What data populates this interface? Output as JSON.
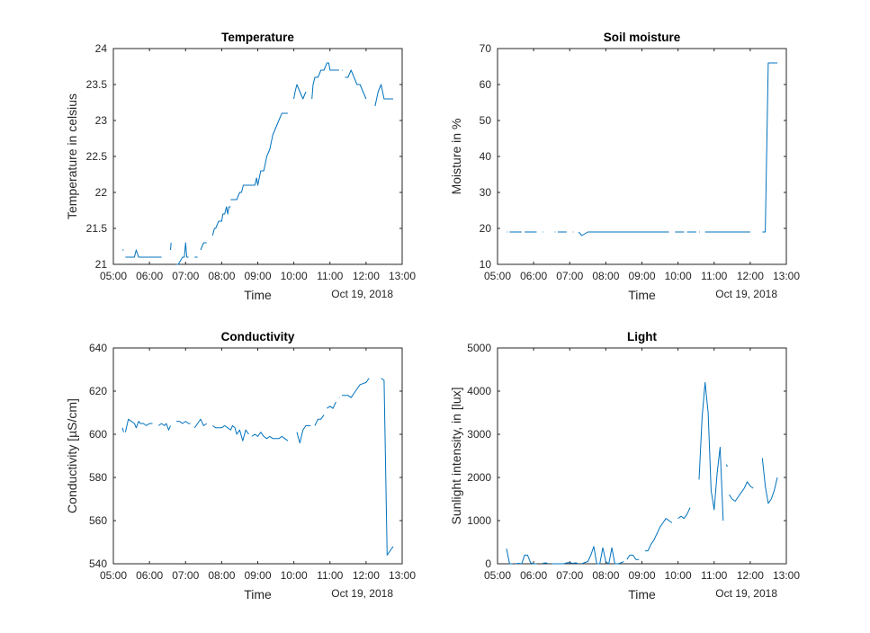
{
  "colors": {
    "line": "#0072bd",
    "axis": "#262626",
    "background": "#ffffff"
  },
  "chart_data": [
    {
      "type": "line",
      "title": "Temperature",
      "xlabel": "Time",
      "ylabel": "Temperature in celsius",
      "date_label": "Oct 19, 2018",
      "xlim": [
        "05:00",
        "13:00"
      ],
      "ylim": [
        21,
        24
      ],
      "xticks": [
        "05:00",
        "06:00",
        "07:00",
        "08:00",
        "09:00",
        "10:00",
        "11:00",
        "12:00",
        "13:00"
      ],
      "yticks": [
        "21",
        "21.5",
        "22",
        "22.5",
        "23",
        "23.5",
        "24"
      ],
      "grid": false,
      "segments": [
        {
          "x": [
            "05:15",
            "05:17"
          ],
          "y": [
            21.2,
            21.2
          ]
        },
        {
          "x": [
            "05:20",
            "05:30",
            "05:35",
            "05:38",
            "05:42",
            "05:48",
            "05:55",
            "06:05",
            "06:20"
          ],
          "y": [
            21.1,
            21.1,
            21.1,
            21.2,
            21.1,
            21.1,
            21.1,
            21.1,
            21.1
          ]
        },
        {
          "x": [
            "06:35",
            "06:36"
          ],
          "y": [
            21.2,
            21.3
          ]
        },
        {
          "x": [
            "06:45",
            "06:48",
            "06:55",
            "06:58",
            "07:00",
            "07:02",
            "07:05"
          ],
          "y": [
            21.0,
            21.0,
            21.1,
            21.1,
            21.3,
            21.1,
            21.1
          ]
        },
        {
          "x": [
            "07:15",
            "07:20"
          ],
          "y": [
            21.1,
            21.1
          ]
        },
        {
          "x": [
            "07:25",
            "07:30",
            "07:35"
          ],
          "y": [
            21.2,
            21.3,
            21.3
          ]
        },
        {
          "x": [
            "07:45",
            "07:48",
            "07:50",
            "07:55",
            "08:00",
            "08:02",
            "08:05",
            "08:08",
            "08:10",
            "08:12",
            "08:15"
          ],
          "y": [
            21.4,
            21.5,
            21.5,
            21.6,
            21.6,
            21.7,
            21.7,
            21.8,
            21.7,
            21.8,
            21.8
          ]
        },
        {
          "x": [
            "08:15",
            "08:20",
            "08:25",
            "08:30",
            "08:33",
            "08:36",
            "08:40",
            "08:45",
            "08:50",
            "08:55",
            "08:58",
            "09:00",
            "09:05",
            "09:10",
            "09:15",
            "09:20",
            "09:25",
            "09:30",
            "09:35",
            "09:40",
            "09:45",
            "09:50"
          ],
          "y": [
            21.9,
            21.9,
            21.9,
            22.0,
            22.0,
            22.1,
            22.1,
            22.1,
            22.1,
            22.1,
            22.2,
            22.1,
            22.3,
            22.3,
            22.5,
            22.6,
            22.8,
            22.9,
            23.0,
            23.1,
            23.1,
            23.1
          ]
        },
        {
          "x": [
            "10:00",
            "10:02",
            "10:05",
            "10:10",
            "10:15",
            "10:20"
          ],
          "y": [
            23.3,
            23.4,
            23.5,
            23.4,
            23.3,
            23.4
          ]
        },
        {
          "x": [
            "10:30",
            "10:32",
            "10:35",
            "10:40",
            "10:45",
            "10:50",
            "10:55",
            "10:58",
            "11:00",
            "11:03",
            "11:06",
            "11:10",
            "11:15"
          ],
          "y": [
            23.3,
            23.5,
            23.6,
            23.6,
            23.7,
            23.7,
            23.8,
            23.8,
            23.7,
            23.7,
            23.7,
            23.7,
            23.7
          ]
        },
        {
          "x": [
            "11:20",
            "11:21"
          ],
          "y": [
            23.7,
            23.7
          ]
        },
        {
          "x": [
            "11:25",
            "11:30",
            "11:35",
            "11:40",
            "11:45",
            "11:50",
            "11:55",
            "12:00"
          ],
          "y": [
            23.6,
            23.6,
            23.7,
            23.6,
            23.5,
            23.5,
            23.4,
            23.3
          ]
        },
        {
          "x": [
            "12:15",
            "12:20",
            "12:25",
            "12:30",
            "12:35",
            "12:40",
            "12:45"
          ],
          "y": [
            23.2,
            23.4,
            23.5,
            23.3,
            23.3,
            23.3,
            23.3
          ]
        }
      ]
    },
    {
      "type": "line",
      "title": "Soil moisture",
      "xlabel": "Time",
      "ylabel": "Moisture in %",
      "date_label": "Oct 19, 2018",
      "xlim": [
        "05:00",
        "13:00"
      ],
      "ylim": [
        10,
        70
      ],
      "xticks": [
        "05:00",
        "06:00",
        "07:00",
        "08:00",
        "09:00",
        "10:00",
        "11:00",
        "12:00",
        "13:00"
      ],
      "yticks": [
        "10",
        "20",
        "30",
        "40",
        "50",
        "60",
        "70"
      ],
      "grid": false,
      "segments": [
        {
          "x": [
            "05:15",
            "05:16"
          ],
          "y": [
            19,
            19
          ]
        },
        {
          "x": [
            "05:20",
            "05:40"
          ],
          "y": [
            19,
            19
          ]
        },
        {
          "x": [
            "05:45",
            "06:05"
          ],
          "y": [
            19,
            19
          ]
        },
        {
          "x": [
            "06:15",
            "06:16"
          ],
          "y": [
            19,
            19
          ]
        },
        {
          "x": [
            "06:35",
            "06:36"
          ],
          "y": [
            19,
            19
          ]
        },
        {
          "x": [
            "06:40",
            "06:55"
          ],
          "y": [
            19,
            19
          ]
        },
        {
          "x": [
            "07:05",
            "07:06"
          ],
          "y": [
            19,
            19
          ]
        },
        {
          "x": [
            "07:15",
            "07:20",
            "07:25",
            "07:30",
            "07:35",
            "08:00",
            "08:30",
            "09:00",
            "09:30",
            "09:45"
          ],
          "y": [
            19,
            18,
            18.5,
            19,
            19,
            19,
            19,
            19,
            19,
            19
          ]
        },
        {
          "x": [
            "09:55",
            "10:10"
          ],
          "y": [
            19,
            19
          ]
        },
        {
          "x": [
            "10:15",
            "10:30"
          ],
          "y": [
            19,
            19
          ]
        },
        {
          "x": [
            "10:35",
            "10:36"
          ],
          "y": [
            19,
            19
          ]
        },
        {
          "x": [
            "10:45",
            "11:30",
            "12:00"
          ],
          "y": [
            19,
            19,
            19
          ]
        },
        {
          "x": [
            "12:20",
            "12:25",
            "12:30",
            "12:35",
            "12:40",
            "12:45"
          ],
          "y": [
            19,
            19,
            66,
            66,
            66,
            66
          ]
        }
      ]
    },
    {
      "type": "line",
      "title": "Conductivity",
      "xlabel": "Time",
      "ylabel": "Conductivity [µS/cm]",
      "date_label": "Oct 19, 2018",
      "xlim": [
        "05:00",
        "13:00"
      ],
      "ylim": [
        540,
        640
      ],
      "xticks": [
        "05:00",
        "06:00",
        "07:00",
        "08:00",
        "09:00",
        "10:00",
        "11:00",
        "12:00",
        "13:00"
      ],
      "yticks": [
        "540",
        "560",
        "580",
        "600",
        "620",
        "640"
      ],
      "grid": false,
      "segments": [
        {
          "x": [
            "05:15",
            "05:17"
          ],
          "y": [
            603,
            601
          ]
        },
        {
          "x": [
            "05:20",
            "05:25",
            "05:30",
            "05:35",
            "05:38",
            "05:42",
            "05:45",
            "05:50",
            "05:55",
            "06:00",
            "06:05"
          ],
          "y": [
            601,
            607,
            606,
            605,
            603,
            606,
            605,
            605,
            604,
            605,
            605
          ]
        },
        {
          "x": [
            "06:15",
            "06:20",
            "06:25",
            "06:28",
            "06:32",
            "06:35"
          ],
          "y": [
            604,
            605,
            604,
            605,
            602,
            604
          ]
        },
        {
          "x": [
            "06:45",
            "06:50",
            "06:55",
            "07:00",
            "07:05",
            "07:08"
          ],
          "y": [
            606,
            606,
            605,
            606,
            605,
            605
          ]
        },
        {
          "x": [
            "07:15",
            "07:20",
            "07:25",
            "07:30",
            "07:35"
          ],
          "y": [
            603,
            605,
            607,
            604,
            605
          ]
        },
        {
          "x": [
            "07:45",
            "07:50",
            "07:55",
            "08:00",
            "08:05",
            "08:10",
            "08:15",
            "08:18",
            "08:22",
            "08:25",
            "08:30",
            "08:35",
            "08:40",
            "08:45"
          ],
          "y": [
            604,
            603,
            603,
            603,
            604,
            603,
            602,
            604,
            603,
            600,
            602,
            597,
            602,
            600
          ]
        },
        {
          "x": [
            "08:50",
            "08:55",
            "09:00",
            "09:05",
            "09:10",
            "09:15",
            "09:20",
            "09:25",
            "09:30",
            "09:35",
            "09:40",
            "09:45",
            "09:50"
          ],
          "y": [
            599,
            600,
            599,
            601,
            599,
            598,
            599,
            598,
            598,
            598,
            599,
            598,
            597
          ]
        },
        {
          "x": [
            "10:05",
            "10:10",
            "10:15",
            "10:20",
            "10:25",
            "10:28"
          ],
          "y": [
            601,
            596,
            602,
            604,
            604,
            604
          ]
        },
        {
          "x": [
            "10:35",
            "10:40",
            "10:45",
            "10:50"
          ],
          "y": [
            604,
            607,
            607,
            609
          ]
        },
        {
          "x": [
            "10:55",
            "11:00",
            "11:05",
            "11:10"
          ],
          "y": [
            612,
            613,
            612,
            615
          ]
        },
        {
          "x": [
            "11:15",
            "11:16"
          ],
          "y": [
            617,
            617
          ]
        },
        {
          "x": [
            "11:20",
            "11:25",
            "11:30",
            "11:35",
            "11:40",
            "11:45",
            "11:50",
            "12:00",
            "12:05"
          ],
          "y": [
            618,
            618,
            618,
            617,
            619,
            621,
            623,
            624,
            626
          ]
        },
        {
          "x": [
            "12:25",
            "12:30",
            "12:35",
            "12:40",
            "12:45"
          ],
          "y": [
            626,
            625,
            544,
            546,
            548
          ]
        }
      ]
    },
    {
      "type": "line",
      "title": "Light",
      "xlabel": "Time",
      "ylabel": "Sunlight intensity, in [lux]",
      "date_label": "Oct 19, 2018",
      "xlim": [
        "05:00",
        "13:00"
      ],
      "ylim": [
        0,
        5000
      ],
      "xticks": [
        "05:00",
        "06:00",
        "07:00",
        "08:00",
        "09:00",
        "10:00",
        "11:00",
        "12:00",
        "13:00"
      ],
      "yticks": [
        "0",
        "1000",
        "2000",
        "3000",
        "4000",
        "5000"
      ],
      "grid": false,
      "segments": [
        {
          "x": [
            "05:15",
            "05:20",
            "05:25"
          ],
          "y": [
            350,
            0,
            0
          ]
        },
        {
          "x": [
            "05:30",
            "05:35",
            "05:40",
            "05:45",
            "05:50",
            "05:55",
            "06:00",
            "06:05"
          ],
          "y": [
            0,
            10,
            0,
            200,
            200,
            20,
            0,
            0
          ]
        },
        {
          "x": [
            "06:15",
            "06:20",
            "06:25"
          ],
          "y": [
            10,
            20,
            0
          ]
        },
        {
          "x": [
            "06:30",
            "06:35",
            "06:40",
            "06:45",
            "06:50",
            "06:55",
            "07:00",
            "07:05",
            "07:10",
            "07:15"
          ],
          "y": [
            0,
            0,
            0,
            0,
            0,
            20,
            30,
            10,
            20,
            0
          ]
        },
        {
          "x": [
            "07:20",
            "07:25",
            "07:30",
            "07:35",
            "07:40",
            "07:45",
            "07:50",
            "07:55",
            "08:00",
            "08:05",
            "08:10",
            "08:15",
            "08:20",
            "08:25",
            "08:30"
          ],
          "y": [
            0,
            30,
            50,
            200,
            400,
            0,
            0,
            370,
            50,
            0,
            370,
            0,
            0,
            20,
            50
          ]
        },
        {
          "x": [
            "08:35",
            "08:40",
            "08:45",
            "08:50",
            "08:55"
          ],
          "y": [
            100,
            200,
            200,
            100,
            100
          ]
        },
        {
          "x": [
            "09:05",
            "09:10",
            "09:15",
            "09:20",
            "09:25",
            "09:30",
            "09:35",
            "09:40",
            "09:45",
            "09:50"
          ],
          "y": [
            300,
            300,
            450,
            550,
            700,
            850,
            950,
            1050,
            1000,
            950
          ]
        },
        {
          "x": [
            "10:00",
            "10:05",
            "10:10",
            "10:15",
            "10:20"
          ],
          "y": [
            1050,
            1100,
            1050,
            1150,
            1300
          ]
        },
        {
          "x": [
            "10:35",
            "10:40",
            "10:45",
            "10:50",
            "10:55",
            "11:00",
            "11:05",
            "11:10",
            "11:15"
          ],
          "y": [
            1950,
            3400,
            4200,
            3500,
            1700,
            1250,
            2100,
            2700,
            1000
          ]
        },
        {
          "x": [
            "11:20",
            "11:22"
          ],
          "y": [
            2300,
            2250
          ]
        },
        {
          "x": [
            "11:25",
            "11:30",
            "11:35",
            "11:40",
            "11:45",
            "11:50",
            "11:55",
            "12:00",
            "12:05"
          ],
          "y": [
            1600,
            1500,
            1450,
            1550,
            1650,
            1750,
            1900,
            1800,
            1750
          ]
        },
        {
          "x": [
            "12:20",
            "12:25",
            "12:30",
            "12:35",
            "12:40",
            "12:45"
          ],
          "y": [
            2450,
            1800,
            1400,
            1500,
            1700,
            2000
          ]
        }
      ]
    }
  ]
}
